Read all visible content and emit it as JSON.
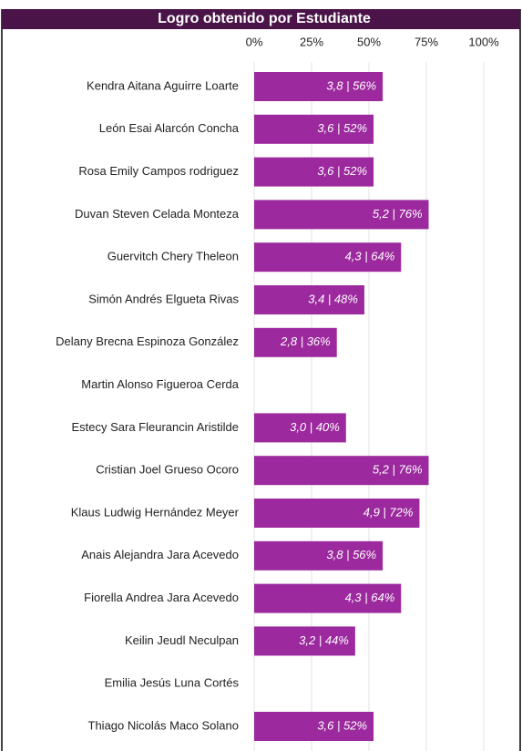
{
  "chart_data": {
    "type": "bar",
    "orientation": "horizontal",
    "title": "Logro obtenido por Estudiante",
    "categories": [
      "Kendra Aitana Aguirre Loarte",
      "León Esai Alarcón Concha",
      "Rosa Emily Campos rodriguez",
      "Duvan Steven  Celada Monteza",
      "Guervitch  Chery  Theleon",
      "Simón  Andrés Elgueta Rivas",
      "Delany Brecna Espinoza  González",
      "Martin Alonso  Figueroa Cerda",
      "Estecy Sara Fleurancin Aristilde",
      "Cristian Joel Grueso Ocoro",
      "Klaus Ludwig Hernández Meyer",
      "Anais Alejandra Jara Acevedo",
      "Fiorella Andrea Jara Acevedo",
      "Keilin Jeudl Neculpan",
      "Emilia Jesús  Luna  Cortés",
      "Thiago Nicolás Maco Solano"
    ],
    "values": [
      56,
      52,
      52,
      76,
      64,
      48,
      36,
      null,
      40,
      76,
      72,
      56,
      64,
      44,
      null,
      52
    ],
    "value_labels": [
      "3,8 | 56%",
      "3,6 | 52%",
      "3,6 | 52%",
      "5,2 | 76%",
      "4,3 | 64%",
      "3,4 | 48%",
      "2,8 | 36%",
      null,
      "3,0 | 40%",
      "5,2 | 76%",
      "4,9 | 72%",
      "3,8 | 56%",
      "4,3 | 64%",
      "3,2 | 44%",
      null,
      "3,6 | 52%"
    ],
    "color": "#9c2a9e",
    "xlim": [
      0,
      100
    ],
    "xticks": [
      {
        "value": 0,
        "label": "0%"
      },
      {
        "value": 25,
        "label": "25%"
      },
      {
        "value": 50,
        "label": "50%"
      },
      {
        "value": 75,
        "label": "75%"
      },
      {
        "value": 100,
        "label": "100%"
      }
    ],
    "grid": true
  }
}
